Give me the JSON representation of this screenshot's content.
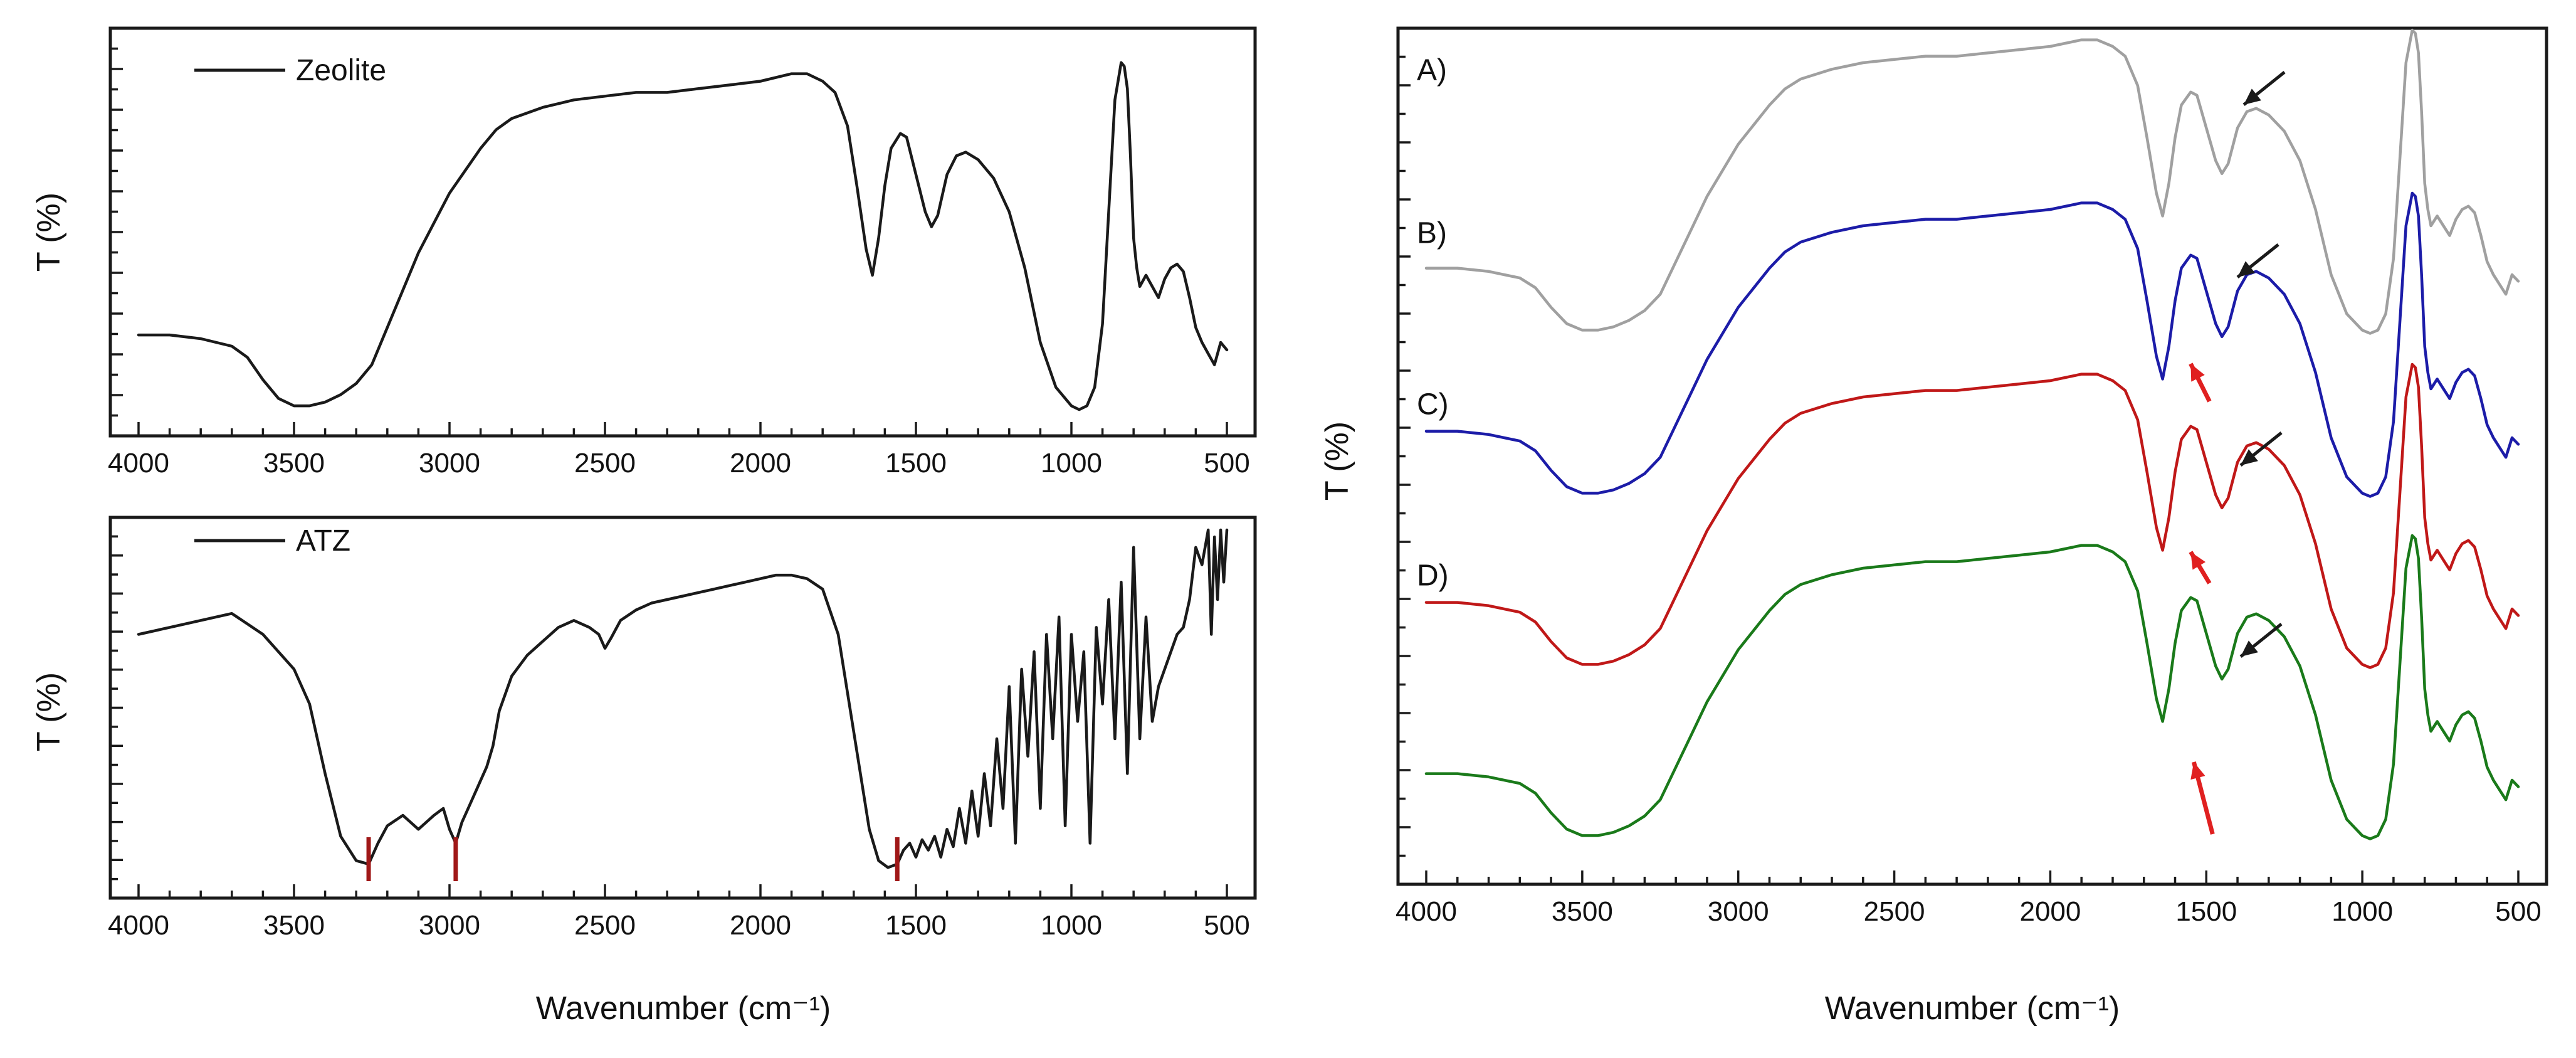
{
  "chart_data": [
    {
      "type": "line",
      "panel": "top-left",
      "xlabel": "",
      "ylabel": "T (%)",
      "xlim": [
        4000,
        500
      ],
      "xticks": [
        "4000",
        "3500",
        "3000",
        "2500",
        "2000",
        "1500",
        "1000",
        "500"
      ],
      "ylim": [
        0,
        100
      ],
      "legend": "Zeolite",
      "color": "#1a1a1a",
      "x": [
        4000,
        3900,
        3800,
        3700,
        3650,
        3600,
        3550,
        3500,
        3450,
        3400,
        3350,
        3300,
        3250,
        3200,
        3150,
        3100,
        3050,
        3000,
        2950,
        2900,
        2850,
        2800,
        2700,
        2600,
        2500,
        2400,
        2300,
        2200,
        2100,
        2000,
        1900,
        1850,
        1800,
        1760,
        1720,
        1690,
        1660,
        1640,
        1620,
        1600,
        1580,
        1550,
        1530,
        1500,
        1470,
        1450,
        1430,
        1400,
        1370,
        1340,
        1300,
        1250,
        1200,
        1150,
        1100,
        1050,
        1000,
        975,
        950,
        925,
        900,
        880,
        860,
        840,
        830,
        820,
        810,
        800,
        790,
        780,
        760,
        740,
        720,
        700,
        680,
        660,
        640,
        620,
        600,
        580,
        560,
        540,
        520,
        500
      ],
      "y": [
        22,
        22,
        21,
        19,
        16,
        10,
        5,
        3,
        3,
        4,
        6,
        9,
        14,
        24,
        34,
        44,
        52,
        60,
        66,
        72,
        77,
        80,
        83,
        85,
        86,
        87,
        87,
        88,
        89,
        90,
        92,
        92,
        90,
        87,
        78,
        62,
        45,
        38,
        48,
        62,
        72,
        76,
        75,
        65,
        55,
        51,
        54,
        65,
        70,
        71,
        69,
        64,
        55,
        40,
        20,
        8,
        3,
        2,
        3,
        8,
        25,
        55,
        85,
        95,
        94,
        88,
        70,
        48,
        40,
        35,
        38,
        35,
        32,
        37,
        40,
        41,
        39,
        32,
        24,
        20,
        17,
        14,
        20,
        18
      ]
    },
    {
      "type": "line",
      "panel": "bottom-left",
      "xlabel": "Wavenumber (cm⁻¹)",
      "ylabel": "T (%)",
      "xlim": [
        4000,
        500
      ],
      "xticks": [
        "4000",
        "3500",
        "3000",
        "2500",
        "2000",
        "1500",
        "1000",
        "500"
      ],
      "ylim": [
        0,
        100
      ],
      "legend": "ATZ",
      "color": "#1a1a1a",
      "markers_color": "#a01818",
      "markers_x": [
        3260,
        2980,
        1560
      ],
      "x": [
        4000,
        3900,
        3800,
        3700,
        3600,
        3500,
        3450,
        3400,
        3350,
        3300,
        3260,
        3230,
        3200,
        3150,
        3100,
        3050,
        3020,
        3000,
        2980,
        2960,
        2940,
        2920,
        2900,
        2880,
        2860,
        2840,
        2800,
        2750,
        2700,
        2650,
        2600,
        2550,
        2520,
        2500,
        2480,
        2450,
        2400,
        2350,
        2300,
        2250,
        2200,
        2150,
        2100,
        2050,
        2000,
        1950,
        1900,
        1850,
        1800,
        1750,
        1700,
        1650,
        1620,
        1590,
        1560,
        1540,
        1520,
        1500,
        1480,
        1460,
        1440,
        1420,
        1400,
        1380,
        1360,
        1340,
        1320,
        1300,
        1280,
        1260,
        1240,
        1220,
        1200,
        1180,
        1160,
        1140,
        1120,
        1100,
        1080,
        1060,
        1040,
        1020,
        1000,
        980,
        960,
        940,
        920,
        900,
        880,
        860,
        840,
        820,
        800,
        780,
        760,
        740,
        720,
        700,
        680,
        660,
        640,
        620,
        600,
        580,
        560,
        550,
        540,
        530,
        520,
        510,
        500
      ],
      "y": [
        70,
        72,
        74,
        76,
        70,
        60,
        50,
        30,
        12,
        5,
        4,
        10,
        15,
        18,
        14,
        18,
        20,
        14,
        10,
        16,
        20,
        24,
        28,
        32,
        38,
        48,
        58,
        64,
        68,
        72,
        74,
        72,
        70,
        66,
        69,
        74,
        77,
        79,
        80,
        81,
        82,
        83,
        84,
        85,
        86,
        87,
        87,
        86,
        83,
        70,
        42,
        14,
        5,
        3,
        4,
        8,
        10,
        6,
        11,
        8,
        12,
        6,
        14,
        9,
        20,
        10,
        25,
        12,
        30,
        15,
        40,
        20,
        55,
        10,
        60,
        35,
        65,
        20,
        70,
        40,
        75,
        15,
        70,
        45,
        65,
        10,
        72,
        50,
        80,
        40,
        85,
        30,
        95,
        40,
        75,
        45,
        55,
        60,
        65,
        70,
        72,
        80,
        95,
        90,
        100,
        70,
        98,
        80,
        100,
        85,
        100
      ]
    },
    {
      "type": "line",
      "panel": "right",
      "xlabel": "Wavenumber (cm⁻¹)",
      "ylabel": "T (%)",
      "xlim": [
        4000,
        500
      ],
      "xticks": [
        "4000",
        "3500",
        "3000",
        "2500",
        "2000",
        "1500",
        "1000",
        "500"
      ],
      "ylim": [
        0,
        100
      ],
      "arrow_colors": {
        "black": "#1a1a1a",
        "red": "#e02020"
      },
      "black_arrows_x": [
        1400,
        1420,
        1410,
        1410
      ],
      "red_arrows_x": [
        1540,
        1540,
        1530
      ],
      "x": [
        4000,
        3900,
        3800,
        3700,
        3650,
        3600,
        3550,
        3500,
        3450,
        3400,
        3350,
        3300,
        3250,
        3200,
        3150,
        3100,
        3050,
        3000,
        2950,
        2900,
        2850,
        2800,
        2700,
        2600,
        2500,
        2400,
        2300,
        2200,
        2100,
        2000,
        1900,
        1850,
        1800,
        1760,
        1720,
        1690,
        1660,
        1640,
        1620,
        1600,
        1580,
        1550,
        1530,
        1500,
        1470,
        1450,
        1430,
        1400,
        1370,
        1340,
        1300,
        1250,
        1200,
        1150,
        1100,
        1050,
        1000,
        975,
        950,
        925,
        900,
        880,
        860,
        840,
        830,
        820,
        810,
        800,
        790,
        780,
        760,
        740,
        720,
        700,
        680,
        660,
        640,
        620,
        600,
        580,
        560,
        540,
        520,
        500
      ],
      "series": [
        {
          "name": "A)",
          "color": "#a0a0a0",
          "offset": 66,
          "y": [
            22,
            22,
            21,
            19,
            16,
            10,
            5,
            3,
            3,
            4,
            6,
            9,
            14,
            24,
            34,
            44,
            52,
            60,
            66,
            72,
            77,
            80,
            83,
            85,
            86,
            87,
            87,
            88,
            89,
            90,
            92,
            92,
            90,
            87,
            78,
            62,
            45,
            38,
            48,
            62,
            72,
            76,
            75,
            65,
            55,
            51,
            54,
            65,
            70,
            71,
            69,
            64,
            55,
            40,
            20,
            8,
            3,
            2,
            3,
            8,
            25,
            55,
            85,
            95,
            94,
            88,
            70,
            48,
            40,
            35,
            38,
            35,
            32,
            37,
            40,
            41,
            39,
            32,
            24,
            20,
            17,
            14,
            20,
            18
          ]
        },
        {
          "name": "B)",
          "color": "#1c1ca8",
          "offset": 46,
          "y": [
            22,
            22,
            21,
            19,
            16,
            10,
            5,
            3,
            3,
            4,
            6,
            9,
            14,
            24,
            34,
            44,
            52,
            60,
            66,
            72,
            77,
            80,
            83,
            85,
            86,
            87,
            87,
            88,
            89,
            90,
            92,
            92,
            90,
            87,
            78,
            62,
            45,
            38,
            48,
            62,
            72,
            76,
            75,
            65,
            55,
            51,
            54,
            65,
            70,
            71,
            69,
            64,
            55,
            40,
            20,
            8,
            3,
            2,
            3,
            8,
            25,
            55,
            85,
            95,
            94,
            88,
            70,
            48,
            40,
            35,
            38,
            35,
            32,
            37,
            40,
            41,
            39,
            32,
            24,
            20,
            17,
            14,
            20,
            18
          ]
        },
        {
          "name": "C)",
          "color": "#c01818",
          "offset": 25,
          "y": [
            22,
            22,
            21,
            19,
            16,
            10,
            5,
            3,
            3,
            4,
            6,
            9,
            14,
            24,
            34,
            44,
            52,
            60,
            66,
            72,
            77,
            80,
            83,
            85,
            86,
            87,
            87,
            88,
            89,
            90,
            92,
            92,
            90,
            87,
            78,
            62,
            45,
            38,
            48,
            62,
            72,
            76,
            75,
            65,
            55,
            51,
            54,
            65,
            70,
            71,
            69,
            64,
            55,
            40,
            20,
            8,
            3,
            2,
            3,
            8,
            25,
            55,
            85,
            95,
            94,
            88,
            70,
            48,
            40,
            35,
            38,
            35,
            32,
            37,
            40,
            41,
            39,
            32,
            24,
            20,
            17,
            14,
            20,
            18
          ]
        },
        {
          "name": "D)",
          "color": "#1a7a1a",
          "offset": 4,
          "y": [
            22,
            22,
            21,
            19,
            16,
            10,
            5,
            3,
            3,
            4,
            6,
            9,
            14,
            24,
            34,
            44,
            52,
            60,
            66,
            72,
            77,
            80,
            83,
            85,
            86,
            87,
            87,
            88,
            89,
            90,
            92,
            92,
            90,
            87,
            78,
            62,
            45,
            38,
            48,
            62,
            72,
            76,
            75,
            65,
            55,
            51,
            54,
            65,
            70,
            71,
            69,
            64,
            55,
            40,
            20,
            8,
            3,
            2,
            3,
            8,
            25,
            55,
            85,
            95,
            94,
            88,
            70,
            48,
            40,
            35,
            38,
            35,
            32,
            37,
            40,
            41,
            39,
            32,
            24,
            20,
            17,
            14,
            20,
            18
          ]
        }
      ]
    }
  ]
}
